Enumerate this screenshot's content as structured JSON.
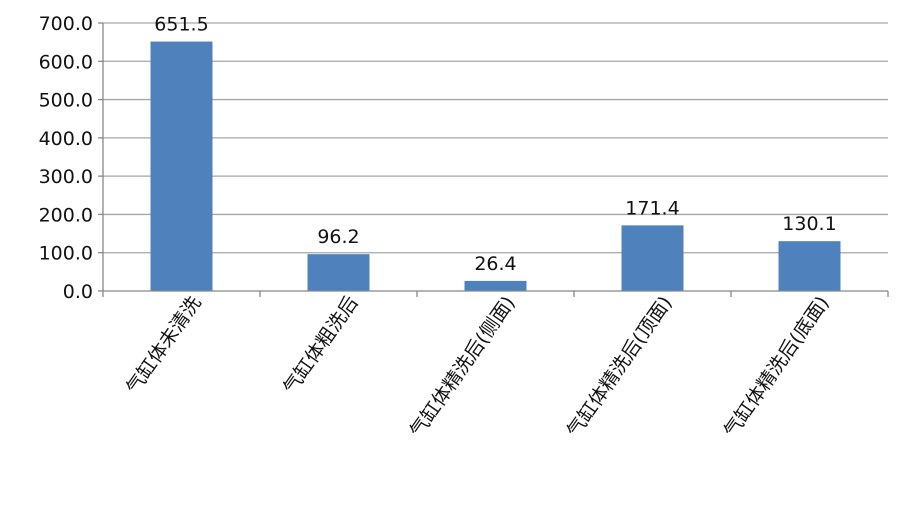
{
  "chart_data": {
    "type": "bar",
    "categories": [
      "气缸体未清洗",
      "气缸体粗洗后",
      "气缸体精洗后(侧面)",
      "气缸体精洗后(顶面)",
      "气缸体精洗后(底面)"
    ],
    "values": [
      651.5,
      96.2,
      26.4,
      171.4,
      130.1
    ],
    "data_labels": [
      "651.5",
      "96.2",
      "26.4",
      "171.4",
      "130.1"
    ],
    "title": "",
    "xlabel": "",
    "ylabel": "",
    "ylim": [
      0,
      700
    ],
    "yticks": [
      "0.0",
      "100.0",
      "200.0",
      "300.0",
      "400.0",
      "500.0",
      "600.0",
      "700.0"
    ],
    "grid": true,
    "legend": "none",
    "bar_color": "#4F81BD",
    "grid_color": "#A6A6A6"
  }
}
